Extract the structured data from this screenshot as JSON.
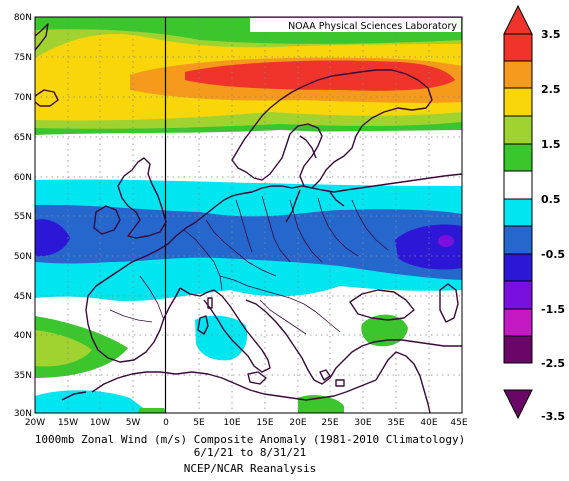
{
  "credit": "NOAA Physical Sciences Laboratory",
  "caption": {
    "line1": "1000mb Zonal Wind (m/s) Composite Anomaly (1981-2010 Climatology)",
    "line2": "6/1/21  to 8/31/21",
    "line3": "NCEP/NCAR Reanalysis"
  },
  "lat_labels": [
    "80N",
    "75N",
    "70N",
    "65N",
    "60N",
    "55N",
    "50N",
    "45N",
    "40N",
    "35N",
    "30N"
  ],
  "lon_labels": [
    "20W",
    "15W",
    "10W",
    "5W",
    "0",
    "5E",
    "10E",
    "15E",
    "20E",
    "25E",
    "30E",
    "35E",
    "40E",
    "45E"
  ],
  "colorbar": {
    "labels": [
      "3.5",
      "2.5",
      "1.5",
      "0.5",
      "-0.5",
      "-1.5",
      "-2.5",
      "-3.5"
    ],
    "colors": [
      "#f0332b",
      "#f59a1a",
      "#f8d60a",
      "#a0d230",
      "#3ac62c",
      "#ffffff",
      "#00e6f0",
      "#2667ce",
      "#2d17d6",
      "#7a10e0",
      "#c41ac4",
      "#6a0668"
    ]
  },
  "colors": {
    "coast": "#3a0a3a",
    "grid": "#888888",
    "meridian_zero": "#000000"
  }
}
